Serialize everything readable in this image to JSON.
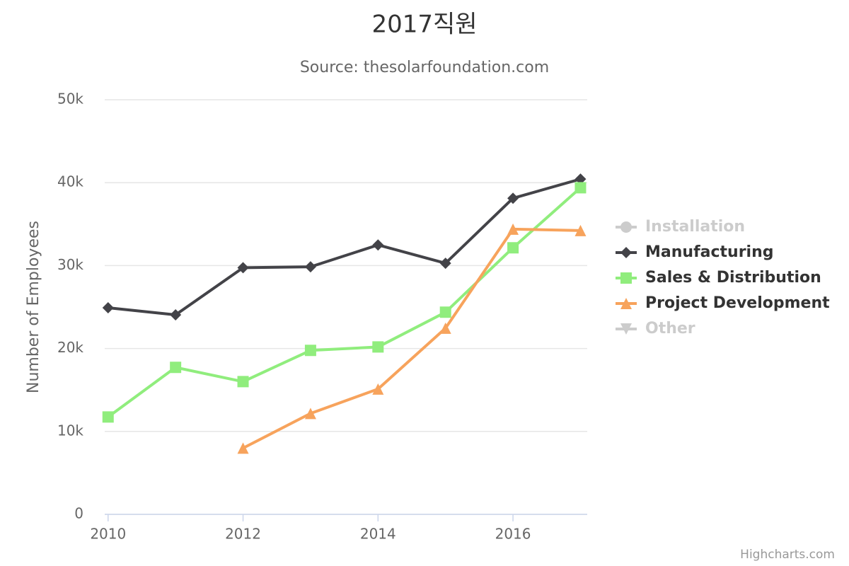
{
  "chart_data": {
    "type": "line",
    "title": "2017직원",
    "subtitle": "Source: thesolarfoundation.com",
    "y_label": "Number of Employees",
    "credits": "Highcharts.com",
    "x": [
      2010,
      2011,
      2012,
      2013,
      2014,
      2015,
      2016,
      2017
    ],
    "xlim": [
      2009.95,
      2017.1
    ],
    "xticks": [
      2010,
      2012,
      2014,
      2016
    ],
    "ylim": [
      0,
      50000
    ],
    "yticks": [
      0,
      {
        "value": 10000,
        "label": "10k"
      },
      {
        "value": 20000,
        "label": "20k"
      },
      {
        "value": 30000,
        "label": "30k"
      },
      {
        "value": 40000,
        "label": "40k"
      },
      {
        "value": 50000,
        "label": "50k"
      }
    ],
    "grid": true,
    "legend": "right",
    "series": [
      {
        "name": "Installation",
        "color": "#7cb5ec",
        "marker": "circle",
        "visible": false,
        "values": [
          null,
          null,
          null,
          null,
          null,
          null,
          null,
          null
        ]
      },
      {
        "name": "Manufacturing",
        "color": "#434348",
        "marker": "diamond",
        "visible": true,
        "values": [
          24916,
          24064,
          29742,
          29851,
          32490,
          30282,
          38121,
          40434
        ]
      },
      {
        "name": "Sales & Distribution",
        "color": "#90ed7d",
        "marker": "square",
        "visible": true,
        "values": [
          11744,
          17722,
          16005,
          19771,
          20185,
          24377,
          32147,
          39387
        ]
      },
      {
        "name": "Project Development",
        "color": "#f7a35c",
        "marker": "triangle",
        "visible": true,
        "values": [
          null,
          null,
          7988,
          12169,
          15112,
          22452,
          34400,
          34227
        ]
      },
      {
        "name": "Other",
        "color": "#8085e9",
        "marker": "triangle-down",
        "visible": false,
        "values": [
          null,
          null,
          null,
          null,
          null,
          null,
          null,
          null
        ]
      }
    ]
  }
}
